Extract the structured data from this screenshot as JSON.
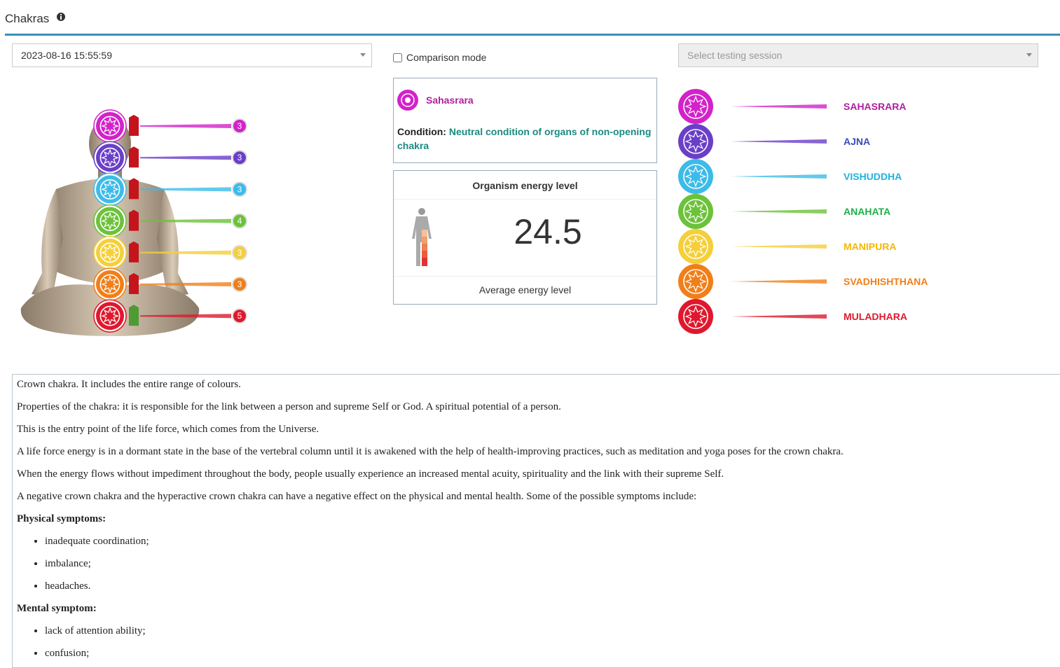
{
  "header": {
    "title": "Chakras"
  },
  "controls": {
    "date": "2023-08-16 15:55:59",
    "comparison": "Comparison mode",
    "session_placeholder": "Select testing session"
  },
  "chakras": [
    {
      "name": "SAHASRARA",
      "level": "3",
      "color": "#d322c9",
      "label_color": "#b01e9e",
      "marker_color": "#c4141c"
    },
    {
      "name": "AJNA",
      "level": "3",
      "color": "#6a3fc8",
      "label_color": "#3a4cb8",
      "marker_color": "#c4141c"
    },
    {
      "name": "VISHUDDHA",
      "level": "3",
      "color": "#3dbbe8",
      "label_color": "#1fb3e0",
      "marker_color": "#c4141c"
    },
    {
      "name": "ANAHATA",
      "level": "4",
      "color": "#6cc23a",
      "label_color": "#1eb04a",
      "marker_color": "#c4141c"
    },
    {
      "name": "MANIPURA",
      "level": "3",
      "color": "#f5cf3a",
      "label_color": "#f5b700",
      "marker_color": "#c4141c"
    },
    {
      "name": "SVADHISHTHANA",
      "level": "3",
      "color": "#f07f1a",
      "label_color": "#f07f1a",
      "marker_color": "#c4141c"
    },
    {
      "name": "MULADHARA",
      "level": "5",
      "color": "#e0182d",
      "label_color": "#e0182d",
      "marker_color": "#4f9a35"
    }
  ],
  "selected": {
    "name": "Sahasrara",
    "condition_label": "Condition:",
    "condition": "Neutral condition of organs of non-opening chakra"
  },
  "energy": {
    "title": "Organism energy level",
    "value": "24.5",
    "caption": "Average energy level"
  },
  "description": {
    "paragraphs": [
      "Crown chakra. It includes the entire range of colours.",
      "Properties of the chakra: it is responsible for the link between a person and supreme Self or God. A spiritual potential of a person.",
      "This is the entry point of the life force, which comes from the Universe.",
      "A life force energy is in a dormant state in the base of the vertebral column until it is awakened with the help of health-improving practices, such as meditation and yoga poses for the crown chakra.",
      "When the energy flows without impediment throughout the body, people usually experience an increased mental acuity, spirituality and the link with their supreme Self.",
      "A negative crown chakra and the hyperactive crown chakra can have a negative effect on the physical and mental health. Some of the possible symptoms include:"
    ],
    "physical_heading": "Physical symptoms:",
    "physical": [
      "inadequate coordination;",
      "imbalance;",
      "headaches."
    ],
    "mental_heading": "Mental symptom:",
    "mental": [
      "lack of attention ability;",
      "confusion;"
    ]
  }
}
